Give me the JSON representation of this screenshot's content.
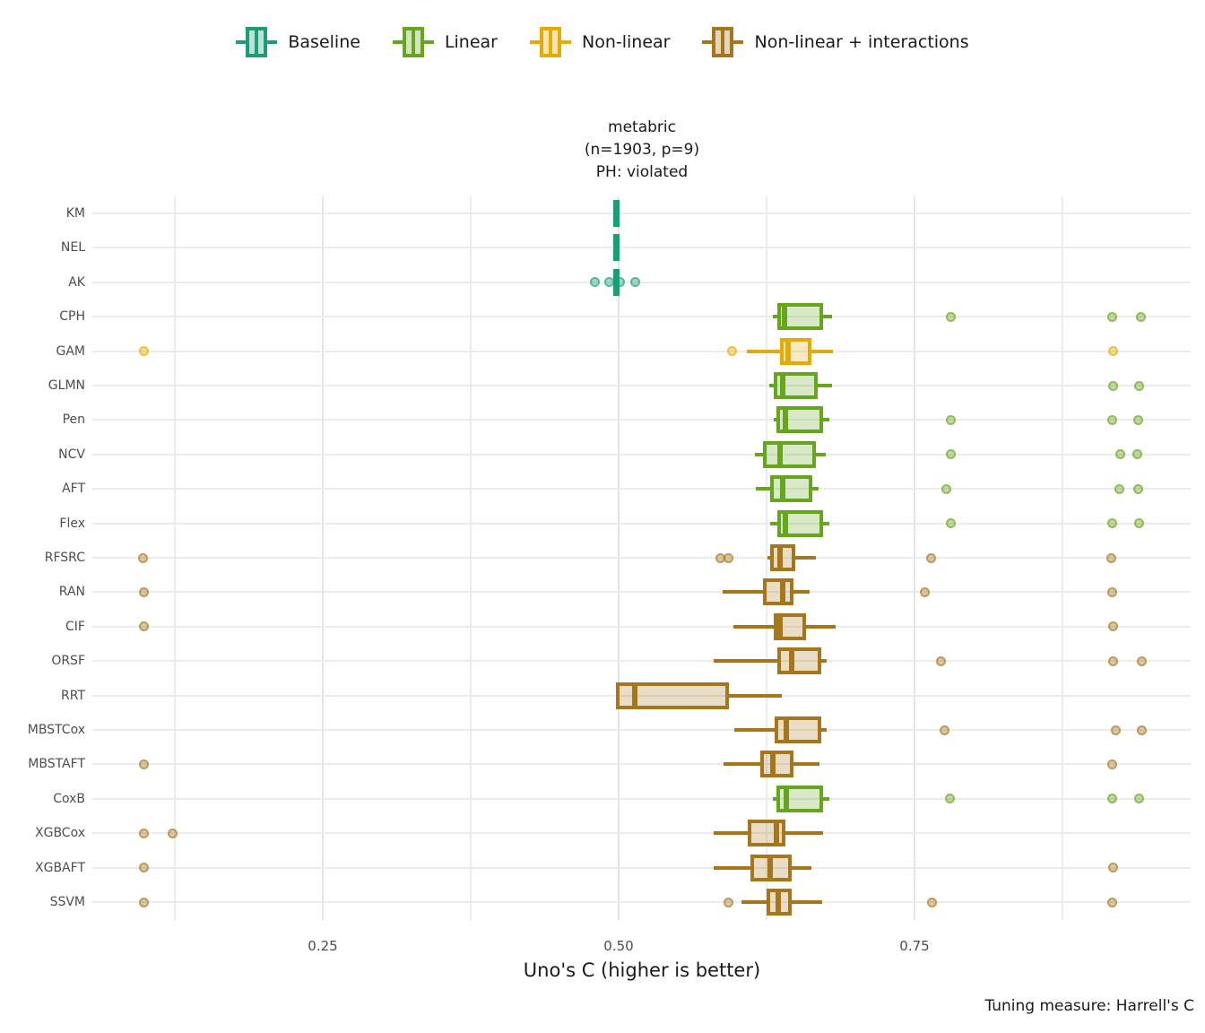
{
  "legend": {
    "items": [
      {
        "key": "baseline",
        "label": "Baseline"
      },
      {
        "key": "linear",
        "label": "Linear"
      },
      {
        "key": "nonlinear",
        "label": "Non-linear"
      },
      {
        "key": "nonlinear_int",
        "label": "Non-linear + interactions"
      }
    ]
  },
  "chart_data": {
    "type": "boxplot-horizontal",
    "title_lines": [
      "metabric",
      "(n=1903, p=9)",
      "PH: violated"
    ],
    "xlabel": "Uno's C (higher is better)",
    "caption": "Tuning measure: Harrell's C",
    "x_ticks": [
      0.25,
      0.5,
      0.75
    ],
    "x_tick_labels": [
      "0.25",
      "0.50",
      "0.75"
    ],
    "x_minor_ticks": [
      0.125,
      0.375,
      0.625,
      0.875
    ],
    "xlim": [
      0.055,
      0.983
    ],
    "grid": true,
    "legend_position": "top",
    "colors": {
      "baseline": "#1B9E77",
      "linear": "#66A61E",
      "nonlinear": "#E6AB02",
      "nonlinear_int": "#A6761D"
    },
    "rows": [
      {
        "model": "KM",
        "group": "baseline",
        "type": "tick",
        "value": 0.498,
        "outliers": []
      },
      {
        "model": "NEL",
        "group": "baseline",
        "type": "tick",
        "value": 0.498,
        "outliers": []
      },
      {
        "model": "AK",
        "group": "baseline",
        "type": "tick",
        "value": 0.498,
        "outliers": [
          0.48,
          0.492,
          0.501,
          0.514
        ]
      },
      {
        "model": "CPH",
        "group": "linear",
        "type": "box",
        "whisker_low": 0.63,
        "q1": 0.634,
        "median": 0.64,
        "q3": 0.673,
        "whisker_high": 0.68,
        "outliers": [
          0.781,
          0.917,
          0.941
        ]
      },
      {
        "model": "GAM",
        "group": "nonlinear",
        "type": "box",
        "whisker_low": 0.608,
        "q1": 0.636,
        "median": 0.643,
        "q3": 0.663,
        "whisker_high": 0.681,
        "outliers": [
          0.099,
          0.596,
          0.918
        ]
      },
      {
        "model": "GLMN",
        "group": "linear",
        "type": "box",
        "whisker_low": 0.627,
        "q1": 0.631,
        "median": 0.639,
        "q3": 0.668,
        "whisker_high": 0.68,
        "outliers": [
          0.918,
          0.94
        ]
      },
      {
        "model": "Pen",
        "group": "linear",
        "type": "box",
        "whisker_low": 0.631,
        "q1": 0.633,
        "median": 0.641,
        "q3": 0.673,
        "whisker_high": 0.678,
        "outliers": [
          0.781,
          0.917,
          0.939
        ]
      },
      {
        "model": "NCV",
        "group": "linear",
        "type": "box",
        "whisker_low": 0.615,
        "q1": 0.622,
        "median": 0.636,
        "q3": 0.667,
        "whisker_high": 0.675,
        "outliers": [
          0.781,
          0.924,
          0.938
        ]
      },
      {
        "model": "AFT",
        "group": "linear",
        "type": "box",
        "whisker_low": 0.616,
        "q1": 0.628,
        "median": 0.639,
        "q3": 0.664,
        "whisker_high": 0.669,
        "outliers": [
          0.777,
          0.923,
          0.939
        ]
      },
      {
        "model": "Flex",
        "group": "linear",
        "type": "box",
        "whisker_low": 0.628,
        "q1": 0.634,
        "median": 0.641,
        "q3": 0.673,
        "whisker_high": 0.678,
        "outliers": [
          0.781,
          0.917,
          0.94
        ]
      },
      {
        "model": "RFSRC",
        "group": "nonlinear_int",
        "type": "box",
        "whisker_low": 0.626,
        "q1": 0.628,
        "median": 0.636,
        "q3": 0.649,
        "whisker_high": 0.667,
        "outliers": [
          0.098,
          0.586,
          0.593,
          0.764,
          0.916
        ]
      },
      {
        "model": "RAN",
        "group": "nonlinear_int",
        "type": "box",
        "whisker_low": 0.588,
        "q1": 0.622,
        "median": 0.639,
        "q3": 0.648,
        "whisker_high": 0.661,
        "outliers": [
          0.099,
          0.759,
          0.917
        ]
      },
      {
        "model": "CIF",
        "group": "nonlinear_int",
        "type": "box",
        "whisker_low": 0.597,
        "q1": 0.631,
        "median": 0.636,
        "q3": 0.658,
        "whisker_high": 0.683,
        "outliers": [
          0.099,
          0.918
        ]
      },
      {
        "model": "ORSF",
        "group": "nonlinear_int",
        "type": "box",
        "whisker_low": 0.58,
        "q1": 0.634,
        "median": 0.646,
        "q3": 0.671,
        "whisker_high": 0.676,
        "outliers": [
          0.772,
          0.918,
          0.942
        ]
      },
      {
        "model": "RRT",
        "group": "nonlinear_int",
        "type": "box",
        "whisker_low": 0.498,
        "q1": 0.498,
        "median": 0.514,
        "q3": 0.593,
        "whisker_high": 0.638,
        "outliers": []
      },
      {
        "model": "MBSTCox",
        "group": "nonlinear_int",
        "type": "box",
        "whisker_low": 0.598,
        "q1": 0.632,
        "median": 0.642,
        "q3": 0.671,
        "whisker_high": 0.676,
        "outliers": [
          0.775,
          0.92,
          0.942
        ]
      },
      {
        "model": "MBSTAFT",
        "group": "nonlinear_int",
        "type": "box",
        "whisker_low": 0.589,
        "q1": 0.62,
        "median": 0.63,
        "q3": 0.648,
        "whisker_high": 0.67,
        "outliers": [
          0.099,
          0.917
        ]
      },
      {
        "model": "CoxB",
        "group": "linear",
        "type": "box",
        "whisker_low": 0.63,
        "q1": 0.633,
        "median": 0.642,
        "q3": 0.673,
        "whisker_high": 0.678,
        "outliers": [
          0.78,
          0.917,
          0.94
        ]
      },
      {
        "model": "XGBCox",
        "group": "nonlinear_int",
        "type": "box",
        "whisker_low": 0.58,
        "q1": 0.609,
        "median": 0.633,
        "q3": 0.641,
        "whisker_high": 0.673,
        "outliers": [
          0.099,
          0.123
        ]
      },
      {
        "model": "XGBAFT",
        "group": "nonlinear_int",
        "type": "box",
        "whisker_low": 0.58,
        "q1": 0.611,
        "median": 0.628,
        "q3": 0.646,
        "whisker_high": 0.663,
        "outliers": [
          0.099,
          0.918
        ]
      },
      {
        "model": "SSVM",
        "group": "nonlinear_int",
        "type": "box",
        "whisker_low": 0.604,
        "q1": 0.625,
        "median": 0.635,
        "q3": 0.646,
        "whisker_high": 0.672,
        "outliers": [
          0.099,
          0.593,
          0.765,
          0.917
        ]
      }
    ]
  }
}
